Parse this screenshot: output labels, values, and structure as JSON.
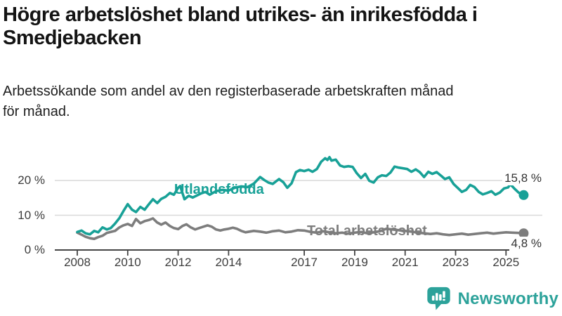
{
  "header": {
    "title_lines": [
      "Högre arbetslöshet bland utrikes- än inrikesfödda i",
      "Smedjebacken"
    ],
    "subtitle_lines": [
      "Arbetssökande som andel av den registerbaserade arbetskraften månad",
      "för månad."
    ]
  },
  "chart_data": {
    "type": "line",
    "title": "Högre arbetslöshet bland utrikes- än inrikesfödda i Smedjebacken",
    "subtitle": "Arbetssökande som andel av den registerbaserade arbetskraften månad för månad.",
    "unit": "%",
    "grid": "horizontal",
    "legend_position": "inline-labels-on-lines",
    "x_range": [
      2008,
      2025.7
    ],
    "y_range": [
      0,
      28
    ],
    "y_ticks": [
      {
        "value": 0,
        "label": "0 %"
      },
      {
        "value": 10,
        "label": "10 %"
      },
      {
        "value": 20,
        "label": "20 %"
      }
    ],
    "x_ticks": [
      {
        "value": 2008,
        "label": "2008"
      },
      {
        "value": 2010,
        "label": "2010"
      },
      {
        "value": 2012,
        "label": "2012"
      },
      {
        "value": 2014,
        "label": "2014"
      },
      {
        "value": 2017,
        "label": "2017"
      },
      {
        "value": 2019,
        "label": "2019"
      },
      {
        "value": 2021,
        "label": "2021"
      },
      {
        "value": 2023,
        "label": "2023"
      },
      {
        "value": 2025,
        "label": "2025"
      }
    ],
    "colors": {
      "grid": "#d9d9d9",
      "axis": "#454545",
      "tick_text": "#3c3c3c",
      "value_text": "#333333"
    },
    "series": [
      {
        "name": "Utlandsfödda",
        "color": "#18a197",
        "end_value": 15.8,
        "end_label": "15,8 %",
        "points": [
          [
            2008.0,
            5.2
          ],
          [
            2008.17,
            5.6
          ],
          [
            2008.33,
            4.8
          ],
          [
            2008.5,
            4.5
          ],
          [
            2008.67,
            5.5
          ],
          [
            2008.83,
            5.1
          ],
          [
            2009.0,
            6.5
          ],
          [
            2009.17,
            5.9
          ],
          [
            2009.33,
            6.3
          ],
          [
            2009.5,
            7.6
          ],
          [
            2009.67,
            9.2
          ],
          [
            2009.83,
            11.2
          ],
          [
            2010.0,
            13.2
          ],
          [
            2010.17,
            11.6
          ],
          [
            2010.33,
            10.9
          ],
          [
            2010.5,
            12.4
          ],
          [
            2010.67,
            11.6
          ],
          [
            2010.83,
            13.1
          ],
          [
            2011.0,
            14.6
          ],
          [
            2011.17,
            13.5
          ],
          [
            2011.33,
            14.7
          ],
          [
            2011.5,
            15.3
          ],
          [
            2011.67,
            16.4
          ],
          [
            2011.83,
            15.9
          ],
          [
            2012.0,
            17.9
          ],
          [
            2012.08,
            18.4
          ],
          [
            2012.25,
            14.6
          ],
          [
            2012.42,
            15.6
          ],
          [
            2012.58,
            15.1
          ],
          [
            2012.75,
            15.7
          ],
          [
            2012.92,
            16.3
          ],
          [
            2013.08,
            16.7
          ],
          [
            2013.25,
            15.9
          ],
          [
            2013.5,
            16.9
          ],
          [
            2013.75,
            17.3
          ],
          [
            2014.0,
            17.1
          ],
          [
            2014.25,
            17.9
          ],
          [
            2014.5,
            18.3
          ],
          [
            2014.75,
            18.1
          ],
          [
            2015.0,
            19.1
          ],
          [
            2015.25,
            21.0
          ],
          [
            2015.42,
            20.1
          ],
          [
            2015.58,
            19.4
          ],
          [
            2015.75,
            19.0
          ],
          [
            2016.0,
            20.4
          ],
          [
            2016.17,
            19.5
          ],
          [
            2016.33,
            17.9
          ],
          [
            2016.5,
            19.2
          ],
          [
            2016.67,
            22.4
          ],
          [
            2016.83,
            23.0
          ],
          [
            2017.0,
            22.7
          ],
          [
            2017.17,
            23.1
          ],
          [
            2017.33,
            22.5
          ],
          [
            2017.5,
            23.3
          ],
          [
            2017.67,
            25.4
          ],
          [
            2017.83,
            26.4
          ],
          [
            2017.92,
            25.9
          ],
          [
            2018.0,
            26.7
          ],
          [
            2018.08,
            25.7
          ],
          [
            2018.25,
            26.0
          ],
          [
            2018.42,
            24.3
          ],
          [
            2018.58,
            23.9
          ],
          [
            2018.75,
            24.1
          ],
          [
            2018.92,
            23.9
          ],
          [
            2019.08,
            22.1
          ],
          [
            2019.25,
            20.7
          ],
          [
            2019.42,
            21.9
          ],
          [
            2019.58,
            19.9
          ],
          [
            2019.75,
            19.4
          ],
          [
            2019.92,
            20.9
          ],
          [
            2020.08,
            21.5
          ],
          [
            2020.25,
            21.3
          ],
          [
            2020.42,
            22.3
          ],
          [
            2020.58,
            24.0
          ],
          [
            2020.75,
            23.7
          ],
          [
            2020.92,
            23.5
          ],
          [
            2021.08,
            23.3
          ],
          [
            2021.25,
            22.5
          ],
          [
            2021.42,
            23.2
          ],
          [
            2021.58,
            22.4
          ],
          [
            2021.75,
            21.0
          ],
          [
            2021.92,
            22.5
          ],
          [
            2022.08,
            21.9
          ],
          [
            2022.25,
            22.4
          ],
          [
            2022.42,
            21.4
          ],
          [
            2022.58,
            20.4
          ],
          [
            2022.75,
            20.9
          ],
          [
            2022.92,
            19.0
          ],
          [
            2023.08,
            17.9
          ],
          [
            2023.25,
            16.7
          ],
          [
            2023.42,
            17.3
          ],
          [
            2023.58,
            18.7
          ],
          [
            2023.75,
            18.1
          ],
          [
            2023.92,
            16.7
          ],
          [
            2024.08,
            16.0
          ],
          [
            2024.25,
            16.4
          ],
          [
            2024.42,
            16.9
          ],
          [
            2024.58,
            15.9
          ],
          [
            2024.75,
            16.5
          ],
          [
            2024.92,
            17.7
          ],
          [
            2025.08,
            18.0
          ],
          [
            2025.17,
            18.9
          ],
          [
            2025.33,
            17.7
          ],
          [
            2025.5,
            16.5
          ],
          [
            2025.7,
            15.8
          ]
        ]
      },
      {
        "name": "Total arbetslöshet",
        "color": "#7d7d7d",
        "end_value": 4.8,
        "end_label": "4,8 %",
        "points": [
          [
            2008.0,
            5.0
          ],
          [
            2008.17,
            4.4
          ],
          [
            2008.33,
            3.8
          ],
          [
            2008.5,
            3.4
          ],
          [
            2008.67,
            3.2
          ],
          [
            2008.83,
            3.7
          ],
          [
            2009.0,
            4.1
          ],
          [
            2009.17,
            4.9
          ],
          [
            2009.33,
            5.2
          ],
          [
            2009.5,
            5.5
          ],
          [
            2009.67,
            6.5
          ],
          [
            2009.83,
            7.1
          ],
          [
            2010.0,
            7.5
          ],
          [
            2010.17,
            6.9
          ],
          [
            2010.33,
            8.9
          ],
          [
            2010.5,
            7.7
          ],
          [
            2010.67,
            8.3
          ],
          [
            2010.83,
            8.6
          ],
          [
            2011.0,
            9.1
          ],
          [
            2011.17,
            7.9
          ],
          [
            2011.33,
            7.3
          ],
          [
            2011.5,
            7.9
          ],
          [
            2011.67,
            6.9
          ],
          [
            2011.83,
            6.3
          ],
          [
            2012.0,
            6.0
          ],
          [
            2012.17,
            6.9
          ],
          [
            2012.33,
            7.4
          ],
          [
            2012.5,
            6.5
          ],
          [
            2012.67,
            5.9
          ],
          [
            2012.83,
            6.3
          ],
          [
            2013.0,
            6.7
          ],
          [
            2013.17,
            7.1
          ],
          [
            2013.33,
            6.7
          ],
          [
            2013.5,
            5.9
          ],
          [
            2013.67,
            5.6
          ],
          [
            2013.83,
            5.9
          ],
          [
            2014.0,
            6.1
          ],
          [
            2014.17,
            6.4
          ],
          [
            2014.33,
            6.1
          ],
          [
            2014.5,
            5.5
          ],
          [
            2014.67,
            5.1
          ],
          [
            2014.83,
            5.3
          ],
          [
            2015.0,
            5.5
          ],
          [
            2015.25,
            5.3
          ],
          [
            2015.5,
            5.0
          ],
          [
            2015.75,
            5.4
          ],
          [
            2016.0,
            5.6
          ],
          [
            2016.25,
            5.1
          ],
          [
            2016.5,
            5.3
          ],
          [
            2016.75,
            5.7
          ],
          [
            2017.0,
            5.6
          ],
          [
            2017.25,
            5.2
          ],
          [
            2017.5,
            5.0
          ],
          [
            2017.75,
            5.4
          ],
          [
            2018.0,
            5.1
          ],
          [
            2018.25,
            4.8
          ],
          [
            2018.5,
            5.0
          ],
          [
            2018.75,
            4.7
          ],
          [
            2019.0,
            5.0
          ],
          [
            2019.25,
            5.2
          ],
          [
            2019.5,
            4.8
          ],
          [
            2019.75,
            5.1
          ],
          [
            2020.0,
            5.4
          ],
          [
            2020.25,
            6.1
          ],
          [
            2020.5,
            5.9
          ],
          [
            2020.75,
            5.7
          ],
          [
            2021.0,
            5.5
          ],
          [
            2021.25,
            5.3
          ],
          [
            2021.5,
            5.0
          ],
          [
            2021.75,
            4.8
          ],
          [
            2022.0,
            4.6
          ],
          [
            2022.25,
            4.8
          ],
          [
            2022.5,
            4.5
          ],
          [
            2022.75,
            4.3
          ],
          [
            2023.0,
            4.5
          ],
          [
            2023.25,
            4.7
          ],
          [
            2023.5,
            4.4
          ],
          [
            2023.75,
            4.6
          ],
          [
            2024.0,
            4.8
          ],
          [
            2024.25,
            5.0
          ],
          [
            2024.5,
            4.7
          ],
          [
            2024.75,
            4.9
          ],
          [
            2025.0,
            5.1
          ],
          [
            2025.25,
            5.0
          ],
          [
            2025.5,
            4.9
          ],
          [
            2025.7,
            4.8
          ]
        ]
      }
    ]
  },
  "branding": {
    "name": "Newsworthy",
    "color": "#2ca29a",
    "icon": "bar-chart-speech-bubble-icon"
  }
}
